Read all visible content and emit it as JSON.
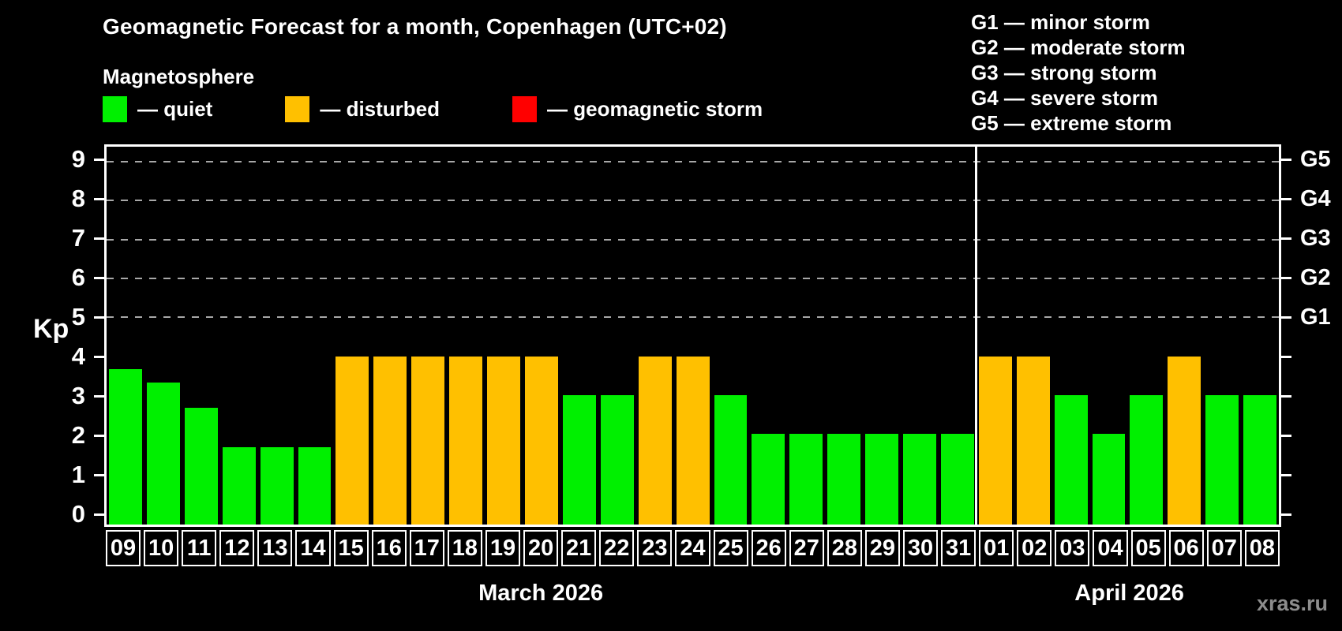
{
  "title": "Geomagnetic Forecast for a month, Copenhagen (UTC+02)",
  "subtitle": "Magnetosphere",
  "legend": {
    "items": [
      {
        "name": "quiet",
        "label": "— quiet",
        "color": "#00f000"
      },
      {
        "name": "disturbed",
        "label": "— disturbed",
        "color": "#ffc000"
      },
      {
        "name": "geomagnetic-storm",
        "label": "— geomagnetic storm",
        "color": "#ff0000"
      }
    ]
  },
  "g_scale_legend": [
    "G1 — minor storm",
    "G2 — moderate storm",
    "G3 — strong storm",
    "G4 — severe storm",
    "G5 — extreme storm"
  ],
  "watermark": "xras.ru",
  "chart_data": {
    "type": "bar",
    "ylabel": "Kp",
    "ylim": [
      0,
      9
    ],
    "yticks": [
      0,
      1,
      2,
      3,
      4,
      5,
      6,
      7,
      8,
      9
    ],
    "grid": "dashed horizontal lines at Kp 5-9 only",
    "g_levels": [
      {
        "kp": 5,
        "label": "G1"
      },
      {
        "kp": 6,
        "label": "G2"
      },
      {
        "kp": 7,
        "label": "G3"
      },
      {
        "kp": 8,
        "label": "G4"
      },
      {
        "kp": 9,
        "label": "G5"
      }
    ],
    "colors": {
      "quiet": "#00f000",
      "disturbed": "#ffc000",
      "geomagnetic-storm": "#ff0000"
    },
    "months": [
      {
        "label": "March 2026",
        "days": 23
      },
      {
        "label": "April 2026",
        "days": 8
      }
    ],
    "bars": [
      {
        "day": "09",
        "kp": 3.67,
        "status": "quiet"
      },
      {
        "day": "10",
        "kp": 3.33,
        "status": "quiet"
      },
      {
        "day": "11",
        "kp": 2.67,
        "status": "quiet"
      },
      {
        "day": "12",
        "kp": 1.67,
        "status": "quiet"
      },
      {
        "day": "13",
        "kp": 1.67,
        "status": "quiet"
      },
      {
        "day": "14",
        "kp": 1.67,
        "status": "quiet"
      },
      {
        "day": "15",
        "kp": 4,
        "status": "disturbed"
      },
      {
        "day": "16",
        "kp": 4,
        "status": "disturbed"
      },
      {
        "day": "17",
        "kp": 4,
        "status": "disturbed"
      },
      {
        "day": "18",
        "kp": 4,
        "status": "disturbed"
      },
      {
        "day": "19",
        "kp": 4,
        "status": "disturbed"
      },
      {
        "day": "20",
        "kp": 4,
        "status": "disturbed"
      },
      {
        "day": "21",
        "kp": 3,
        "status": "quiet"
      },
      {
        "day": "22",
        "kp": 3,
        "status": "quiet"
      },
      {
        "day": "23",
        "kp": 4,
        "status": "disturbed"
      },
      {
        "day": "24",
        "kp": 4,
        "status": "disturbed"
      },
      {
        "day": "25",
        "kp": 3,
        "status": "quiet"
      },
      {
        "day": "26",
        "kp": 2,
        "status": "quiet"
      },
      {
        "day": "27",
        "kp": 2,
        "status": "quiet"
      },
      {
        "day": "28",
        "kp": 2,
        "status": "quiet"
      },
      {
        "day": "29",
        "kp": 2,
        "status": "quiet"
      },
      {
        "day": "30",
        "kp": 2,
        "status": "quiet"
      },
      {
        "day": "31",
        "kp": 2,
        "status": "quiet"
      },
      {
        "day": "01",
        "kp": 4,
        "status": "disturbed"
      },
      {
        "day": "02",
        "kp": 4,
        "status": "disturbed"
      },
      {
        "day": "03",
        "kp": 3,
        "status": "quiet"
      },
      {
        "day": "04",
        "kp": 2,
        "status": "quiet"
      },
      {
        "day": "05",
        "kp": 3,
        "status": "quiet"
      },
      {
        "day": "06",
        "kp": 4,
        "status": "disturbed"
      },
      {
        "day": "07",
        "kp": 3,
        "status": "quiet"
      },
      {
        "day": "08",
        "kp": 3,
        "status": "quiet"
      }
    ]
  }
}
